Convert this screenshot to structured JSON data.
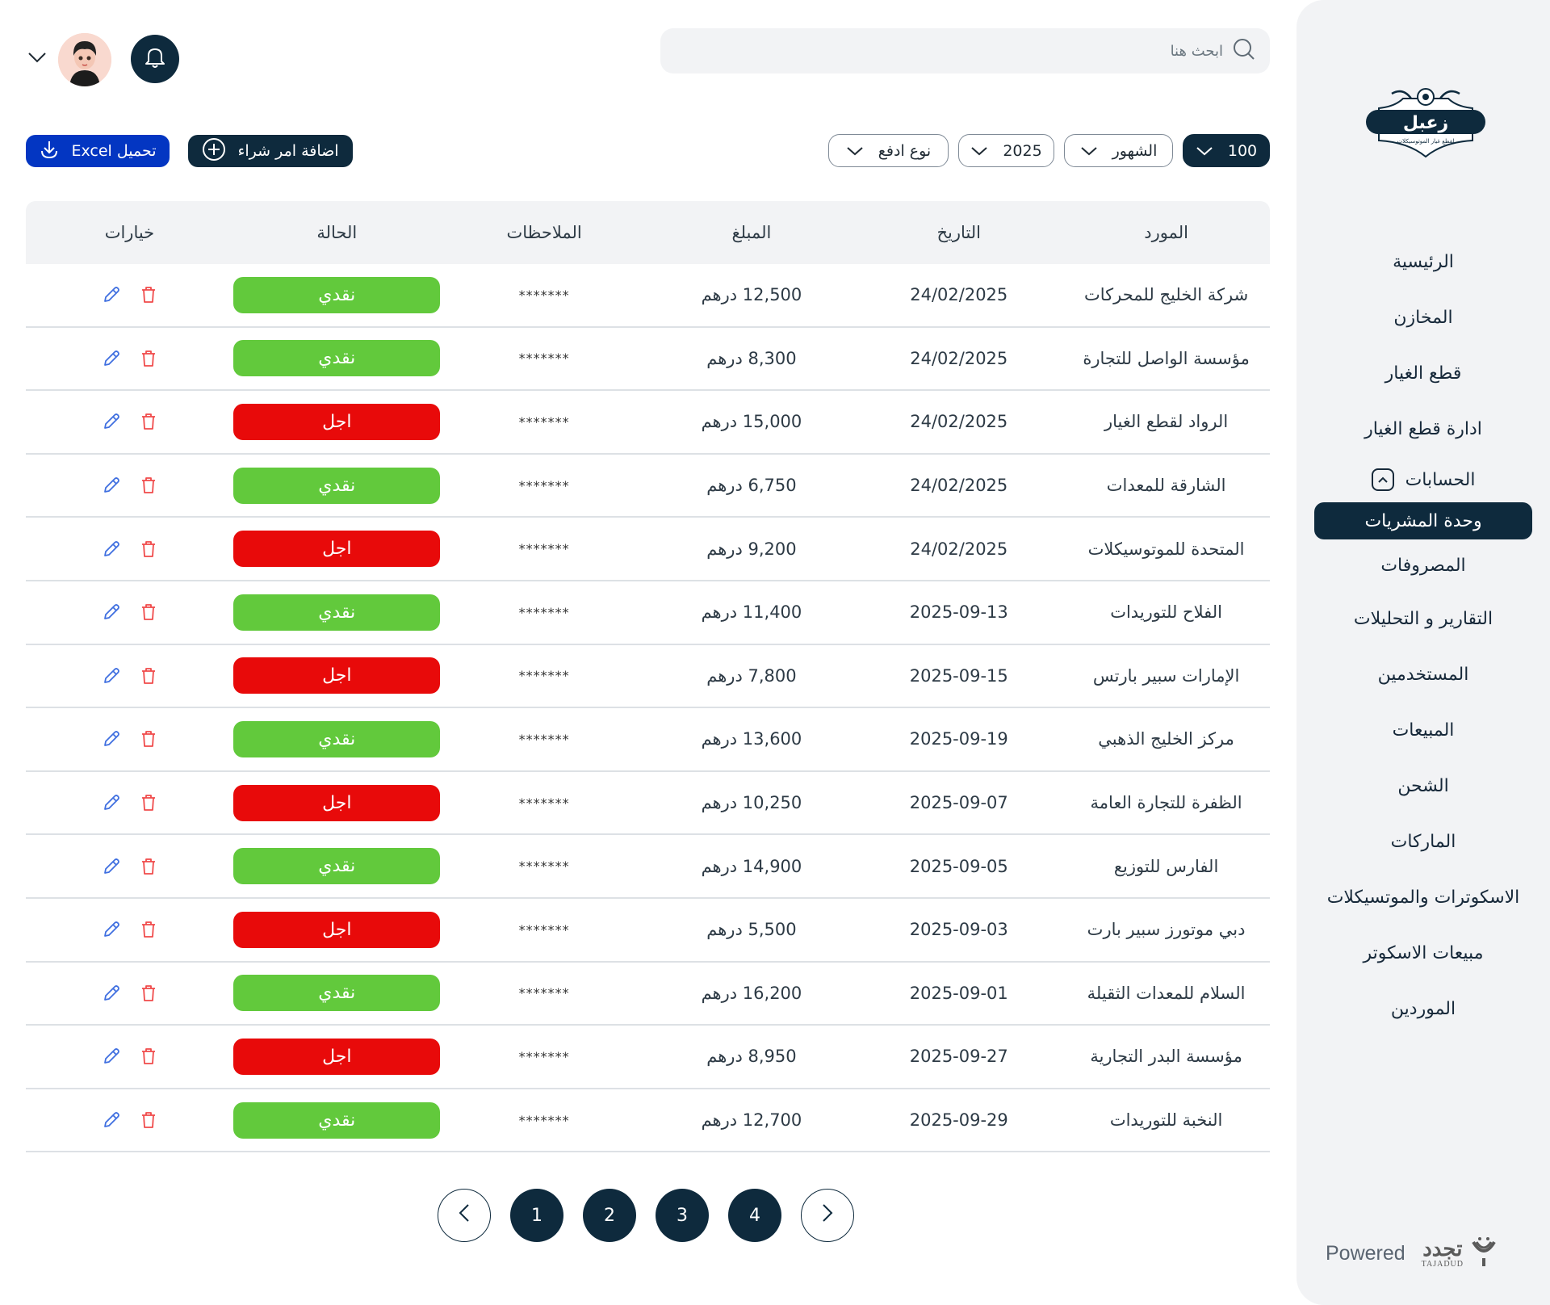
{
  "header": {
    "search_placeholder": "ابحث هنا",
    "notifications_icon": "bell-icon",
    "user_menu_icon": "chevron-down-icon"
  },
  "toolbar": {
    "excel_label": "تحميل Excel",
    "add_label": "اضافة امر شراء",
    "filters": [
      {
        "label": "100",
        "style": "dark"
      },
      {
        "label": "الشهور",
        "style": "outline"
      },
      {
        "label": "2025",
        "style": "outline"
      },
      {
        "label": "نوع ادفع",
        "style": "outline"
      }
    ]
  },
  "colors": {
    "primary": "#0e2a3d",
    "excel_blue": "#0336c2",
    "cash_green": "#62c93c",
    "deferred_red": "#e80a0a",
    "edit_blue": "#3f6fe0",
    "delete_red": "#f04a4a",
    "sidebar_bg": "#f2f3f5"
  },
  "table": {
    "headers": [
      "المورد",
      "التاريخ",
      "المبلغ",
      "الملاحظات",
      "الحالة",
      "خيارات"
    ],
    "rows": [
      {
        "supplier": "شركة الخليج للمحركات",
        "date": "24/02/2025",
        "amount": "12,500 درهم",
        "notes": "*******",
        "status": "نقدي",
        "status_type": "cash"
      },
      {
        "supplier": "مؤسسة الواصل للتجارة",
        "date": "24/02/2025",
        "amount": "8,300 درهم",
        "notes": "*******",
        "status": "نقدي",
        "status_type": "cash"
      },
      {
        "supplier": "الرواد لقطع الغيار",
        "date": "24/02/2025",
        "amount": "15,000 درهم",
        "notes": "*******",
        "status": "اجل",
        "status_type": "deferred"
      },
      {
        "supplier": "الشارقة للمعدات",
        "date": "24/02/2025",
        "amount": "6,750 درهم",
        "notes": "*******",
        "status": "نقدي",
        "status_type": "cash"
      },
      {
        "supplier": "المتحدة للموتوسيكلات",
        "date": "24/02/2025",
        "amount": "9,200 درهم",
        "notes": "*******",
        "status": "اجل",
        "status_type": "deferred"
      },
      {
        "supplier": "الفلاح للتوريدات",
        "date": "2025-09-13",
        "amount": "11,400 درهم",
        "notes": "*******",
        "status": "نقدي",
        "status_type": "cash"
      },
      {
        "supplier": "الإمارات سبير بارتس",
        "date": "2025-09-15",
        "amount": "7,800 درهم",
        "notes": "*******",
        "status": "اجل",
        "status_type": "deferred"
      },
      {
        "supplier": "مركز الخليج الذهبي",
        "date": "2025-09-19",
        "amount": "13,600 درهم",
        "notes": "*******",
        "status": "نقدي",
        "status_type": "cash"
      },
      {
        "supplier": "الظفرة للتجارة العامة",
        "date": "2025-09-07",
        "amount": "10,250 درهم",
        "notes": "*******",
        "status": "اجل",
        "status_type": "deferred"
      },
      {
        "supplier": "الفارس للتوزيع",
        "date": "2025-09-05",
        "amount": "14,900 درهم",
        "notes": "*******",
        "status": "نقدي",
        "status_type": "cash"
      },
      {
        "supplier": "دبي موتورز سبير بارت",
        "date": "2025-09-03",
        "amount": "5,500 درهم",
        "notes": "*******",
        "status": "اجل",
        "status_type": "deferred"
      },
      {
        "supplier": "السلام للمعدات الثقيلة",
        "date": "2025-09-01",
        "amount": "16,200 درهم",
        "notes": "*******",
        "status": "نقدي",
        "status_type": "cash"
      },
      {
        "supplier": "مؤسسة البدر التجارية",
        "date": "2025-09-27",
        "amount": "8,950 درهم",
        "notes": "*******",
        "status": "اجل",
        "status_type": "deferred"
      },
      {
        "supplier": "النخبة للتوريدات",
        "date": "2025-09-29",
        "amount": "12,700 درهم",
        "notes": "*******",
        "status": "نقدي",
        "status_type": "cash"
      }
    ]
  },
  "pagination": {
    "pages": [
      "1",
      "2",
      "3",
      "4"
    ],
    "prev_icon": "chevron-left-icon",
    "next_icon": "chevron-right-icon"
  },
  "sidebar": {
    "logo_text": "زعبل",
    "logo_tagline": "لقطع غيار الموتوسيكلات",
    "items": [
      {
        "label": "الرئيسية"
      },
      {
        "label": "المخازن"
      },
      {
        "label": "قطع الغيار"
      },
      {
        "label": "ادارة قطع الغيار"
      },
      {
        "label": "الحسابات",
        "expanded": true
      },
      {
        "label": "وحدة المشريات",
        "active": true
      },
      {
        "label": "المصروفات"
      },
      {
        "label": "التقارير و التحليلات"
      },
      {
        "label": "المستخدمين"
      },
      {
        "label": "المبيعات"
      },
      {
        "label": "الشحن"
      },
      {
        "label": "الماركات"
      },
      {
        "label": "الاسكوترات والموتسيكلات"
      },
      {
        "label": "مبيعات الاسكوتر"
      },
      {
        "label": "الموردين"
      }
    ],
    "powered_label": "Powered",
    "powered_brand_ar": "تجدد",
    "powered_brand_en": "TAJADUD"
  }
}
